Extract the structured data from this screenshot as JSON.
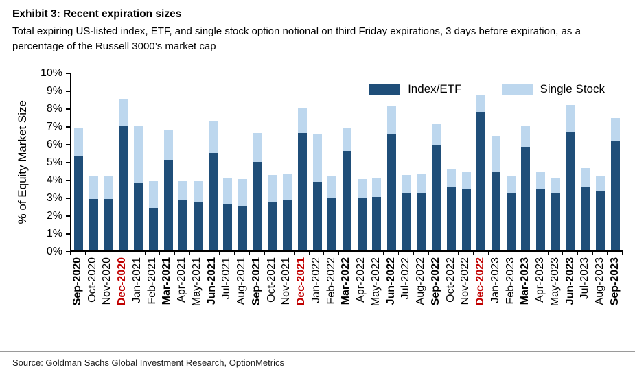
{
  "header": {
    "title": "Exhibit 3: Recent expiration sizes",
    "subtitle": "Total expiring US-listed index, ETF, and single stock option notional on third Friday expirations, 3 days before expiration, as a percentage of the Russell 3000’s market cap"
  },
  "source_note": "Source: Goldman Sachs Global Investment Research, OptionMetrics",
  "chart_data": {
    "type": "bar",
    "stacked": true,
    "title": "Exhibit 3: Recent expiration sizes",
    "xlabel": "",
    "ylabel": "% of Equity Market Size",
    "ylim": [
      0,
      10
    ],
    "ytick_labels": [
      "0%",
      "1%",
      "2%",
      "3%",
      "4%",
      "5%",
      "6%",
      "7%",
      "8%",
      "9%",
      "10%"
    ],
    "grid": false,
    "legend_position": "top-right-inside",
    "categories": [
      "Sep-2020",
      "Oct-2020",
      "Nov-2020",
      "Dec-2020",
      "Jan-2021",
      "Feb-2021",
      "Mar-2021",
      "Apr-2021",
      "May-2021",
      "Jun-2021",
      "Jul-2021",
      "Aug-2021",
      "Sep-2021",
      "Oct-2021",
      "Nov-2021",
      "Dec-2021",
      "Jan-2022",
      "Feb-2022",
      "Mar-2022",
      "Apr-2022",
      "May-2022",
      "Jun-2022",
      "Jul-2022",
      "Aug-2022",
      "Sep-2022",
      "Oct-2022",
      "Nov-2022",
      "Dec-2022",
      "Jan-2023",
      "Feb-2023",
      "Mar-2023",
      "Apr-2023",
      "May-2023",
      "Jun-2023",
      "Jul-2023",
      "Aug-2023",
      "Sep-2023"
    ],
    "series": [
      {
        "name": "Index/ETF",
        "color": "#1f4e79",
        "values": [
          5.3,
          2.9,
          2.9,
          7.0,
          3.8,
          2.4,
          5.1,
          2.8,
          2.7,
          5.5,
          2.6,
          2.5,
          5.0,
          2.75,
          2.8,
          6.6,
          3.85,
          2.95,
          5.6,
          2.95,
          3.0,
          6.55,
          3.2,
          3.25,
          5.9,
          3.6,
          3.45,
          7.8,
          4.45,
          3.2,
          5.85,
          3.45,
          3.25,
          6.7,
          3.6,
          3.3,
          6.2
        ]
      },
      {
        "name": "Single Stock",
        "color": "#bdd7ee",
        "values": [
          1.6,
          1.3,
          1.25,
          1.5,
          3.2,
          1.5,
          1.7,
          1.1,
          1.2,
          1.8,
          1.45,
          1.5,
          1.6,
          1.5,
          1.5,
          1.4,
          2.7,
          1.2,
          1.3,
          1.05,
          1.1,
          1.6,
          1.05,
          1.05,
          1.25,
          0.95,
          0.95,
          0.95,
          2.0,
          0.95,
          1.15,
          0.95,
          0.8,
          1.5,
          1.05,
          0.9,
          1.25
        ]
      }
    ],
    "category_styles": {
      "bold_months": [
        "Mar",
        "Jun",
        "Sep",
        "Dec"
      ],
      "red_months": [
        "Dec"
      ],
      "red_color": "#c00000"
    }
  }
}
